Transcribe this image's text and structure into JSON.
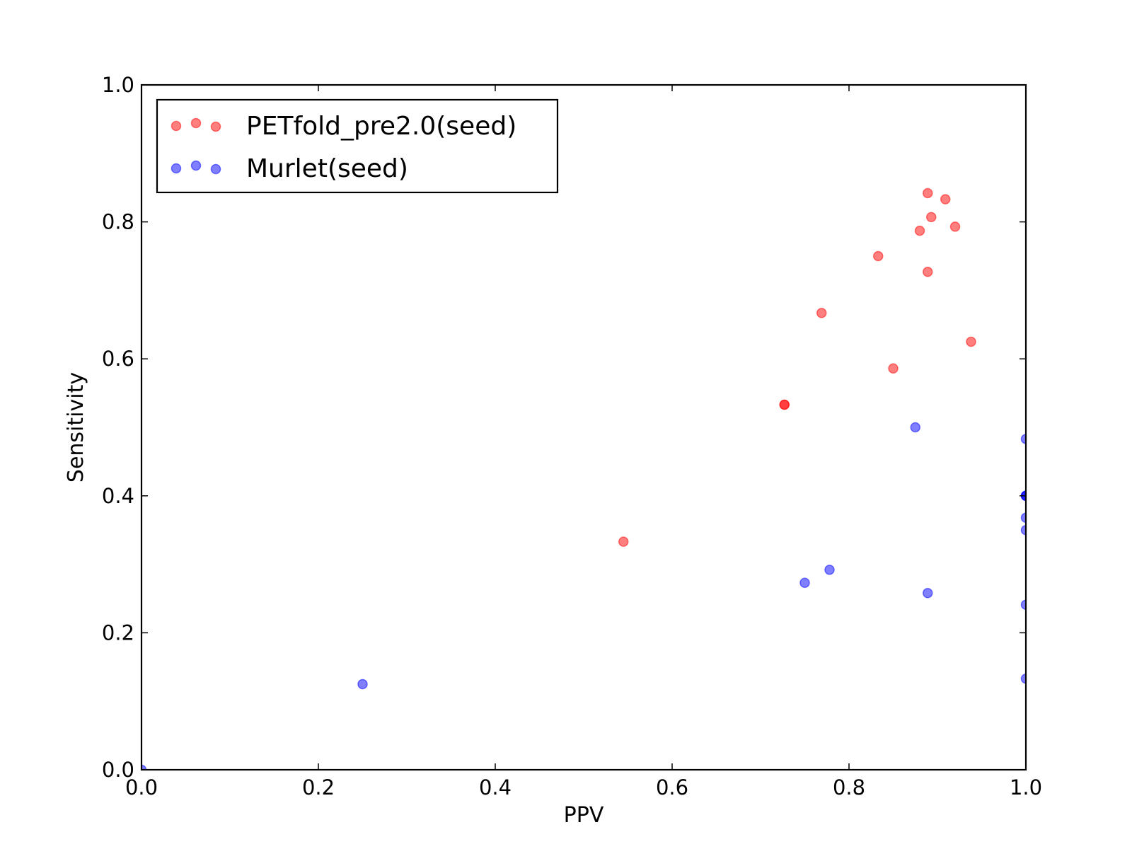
{
  "chart_data": {
    "type": "scatter",
    "title": "",
    "xlabel": "PPV",
    "ylabel": "Sensitivity",
    "xlim": [
      0.0,
      1.0
    ],
    "ylim": [
      0.0,
      1.0
    ],
    "xticks": [
      "0.0",
      "0.2",
      "0.4",
      "0.6",
      "0.8",
      "1.0"
    ],
    "yticks": [
      "0.0",
      "0.2",
      "0.4",
      "0.6",
      "0.8",
      "1.0"
    ],
    "grid": false,
    "legend_position": "top-left",
    "series": [
      {
        "name": "PETfold_pre2.0(seed)",
        "color": "#ff0000",
        "alpha": 0.5,
        "points": [
          {
            "x": 0.545,
            "y": 0.333
          },
          {
            "x": 0.727,
            "y": 0.533
          },
          {
            "x": 0.727,
            "y": 0.533
          },
          {
            "x": 0.769,
            "y": 0.667
          },
          {
            "x": 0.833,
            "y": 0.75
          },
          {
            "x": 0.85,
            "y": 0.586
          },
          {
            "x": 0.889,
            "y": 0.727
          },
          {
            "x": 0.88,
            "y": 0.787
          },
          {
            "x": 0.889,
            "y": 0.842
          },
          {
            "x": 0.893,
            "y": 0.807
          },
          {
            "x": 0.909,
            "y": 0.833
          },
          {
            "x": 0.92,
            "y": 0.793
          },
          {
            "x": 0.938,
            "y": 0.625
          }
        ]
      },
      {
        "name": "Murlet(seed)",
        "color": "#0000ff",
        "alpha": 0.5,
        "points": [
          {
            "x": 0.0,
            "y": 0.0
          },
          {
            "x": 0.25,
            "y": 0.125
          },
          {
            "x": 0.75,
            "y": 0.273
          },
          {
            "x": 0.778,
            "y": 0.292
          },
          {
            "x": 0.875,
            "y": 0.5
          },
          {
            "x": 0.889,
            "y": 0.258
          },
          {
            "x": 1.0,
            "y": 0.483
          },
          {
            "x": 1.0,
            "y": 0.4
          },
          {
            "x": 1.0,
            "y": 0.4
          },
          {
            "x": 1.0,
            "y": 0.4
          },
          {
            "x": 1.0,
            "y": 0.368
          },
          {
            "x": 1.0,
            "y": 0.35
          },
          {
            "x": 1.0,
            "y": 0.241
          },
          {
            "x": 1.0,
            "y": 0.133
          }
        ]
      }
    ]
  }
}
